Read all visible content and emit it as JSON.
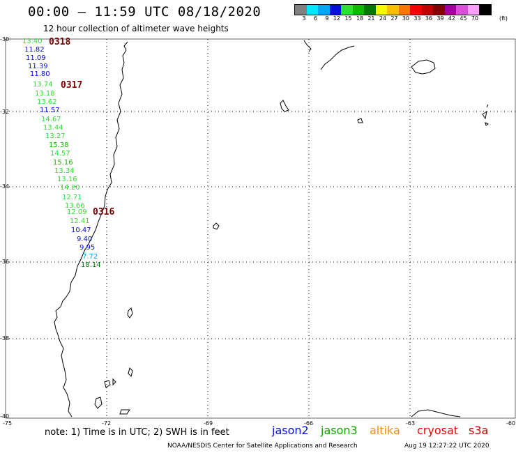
{
  "title": "00:00 – 11:59 UTC 08/18/2020",
  "subtitle": "12 hour collection of altimeter wave heights",
  "colorbar": {
    "colors": [
      "#808080",
      "#00e8ff",
      "#00a8f0",
      "#0010d8",
      "#30e030",
      "#10b800",
      "#007800",
      "#f8f800",
      "#f8c000",
      "#f87800",
      "#f00000",
      "#c00000",
      "#800000",
      "#a000a0",
      "#d850d8",
      "#f8a0f8",
      "#000000"
    ],
    "labels": [
      "3",
      "6",
      "9",
      "12",
      "15",
      "18",
      "21",
      "24",
      "27",
      "30",
      "33",
      "36",
      "39",
      "42",
      "45",
      "70"
    ],
    "unit": "(ft)"
  },
  "lat_labels": [
    "-30",
    "-32",
    "-34",
    "-36",
    "-38",
    "-40"
  ],
  "lon_labels": [
    "-75",
    "-72",
    "-69",
    "-66",
    "-63",
    "-60"
  ],
  "observations": [
    {
      "t": "13.40",
      "c": "#30e030"
    },
    {
      "t": "11.82",
      "c": "#0010d8"
    },
    {
      "t": "11.09",
      "c": "#0010d8"
    },
    {
      "t": "11.39",
      "c": "#0010d8"
    },
    {
      "t": "11.80",
      "c": "#0010d8"
    },
    {
      "t": "13.74",
      "c": "#30e030"
    },
    {
      "t": "13.18",
      "c": "#30e030"
    },
    {
      "t": "13.62",
      "c": "#30e030"
    },
    {
      "t": "11.57",
      "c": "#0010d8"
    },
    {
      "t": "14.67",
      "c": "#30e030"
    },
    {
      "t": "13.44",
      "c": "#30e030"
    },
    {
      "t": "13.27",
      "c": "#30e030"
    },
    {
      "t": "15.38",
      "c": "#10b800"
    },
    {
      "t": "14.57",
      "c": "#30e030"
    },
    {
      "t": "15.16",
      "c": "#10b800"
    },
    {
      "t": "13.34",
      "c": "#30e030"
    },
    {
      "t": "13.16",
      "c": "#30e030"
    },
    {
      "t": "14.20",
      "c": "#30e030"
    },
    {
      "t": "12.71",
      "c": "#30e030"
    },
    {
      "t": "13.66",
      "c": "#30e030"
    },
    {
      "t": "12.09",
      "c": "#30e030"
    },
    {
      "t": "12.41",
      "c": "#30e030"
    },
    {
      "t": "10.47",
      "c": "#0010d8"
    },
    {
      "t": "9.40",
      "c": "#0010d8"
    },
    {
      "t": "9.95",
      "c": "#0010d8"
    },
    {
      "t": "7.72",
      "c": "#00a8f0"
    },
    {
      "t": "18.14",
      "c": "#007800"
    }
  ],
  "cycle_labels": [
    "0318",
    "0317",
    "0316"
  ],
  "note": "note: 1) Time is in UTC; 2) SWH is in feet",
  "legend": [
    {
      "label": "jason2",
      "color": "#0010d8"
    },
    {
      "label": "jason3",
      "color": "#10a000"
    },
    {
      "label": "altika",
      "color": "#f89000"
    },
    {
      "label": "cryosat",
      "color": "#f00000"
    },
    {
      "label": "s3a",
      "color": "#c00000"
    }
  ],
  "footer_left": "NOAA/NESDIS Center for Satellite Applications and Research",
  "footer_right": "Aug 19 12:27:22 UTC 2020"
}
